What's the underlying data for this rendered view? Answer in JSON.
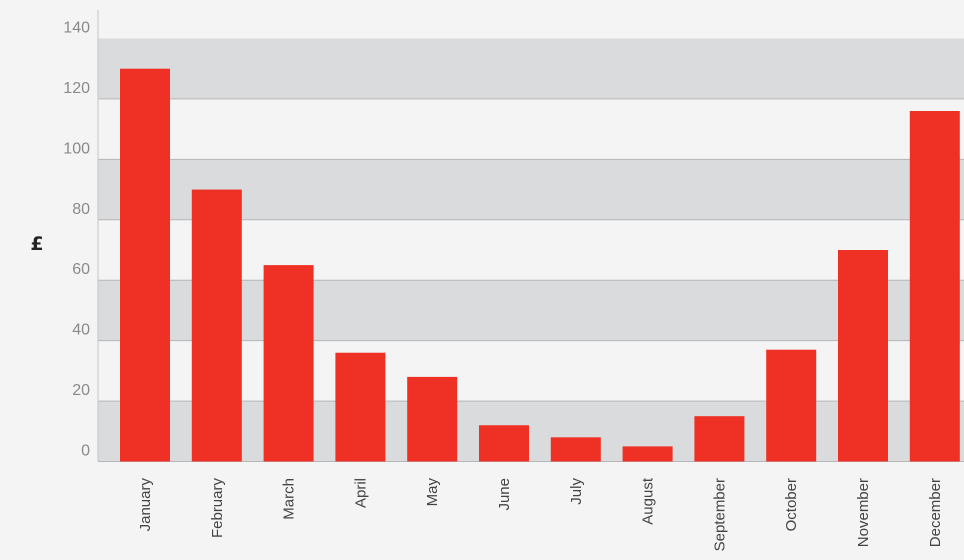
{
  "chart_data": {
    "type": "bar",
    "title": "",
    "xlabel": "",
    "ylabel": "£",
    "categories": [
      "January",
      "February",
      "March",
      "April",
      "May",
      "June",
      "July",
      "August",
      "September",
      "October",
      "November",
      "December"
    ],
    "values": [
      130,
      90,
      65,
      36,
      28,
      12,
      8,
      5,
      15,
      37,
      70,
      116
    ],
    "ylim": [
      0,
      140
    ],
    "yticks": [
      0,
      20,
      40,
      60,
      80,
      100,
      120,
      140
    ],
    "grid": true,
    "legend": "none",
    "colors": {
      "bar": "#ee3124",
      "band": "#dadbdc",
      "background": "#f3f4f3",
      "gridline": "#b5b6b8"
    }
  }
}
